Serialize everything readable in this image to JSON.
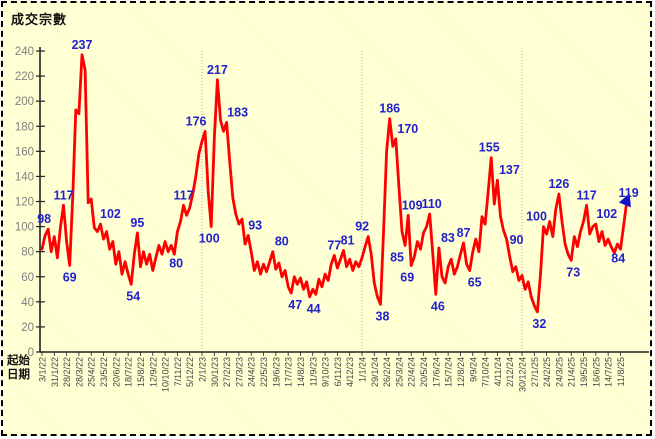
{
  "title": "成交宗數",
  "x_axis_title": {
    "line1": "起始",
    "line2": "日期"
  },
  "colors": {
    "background": "#FFFFC9",
    "frame_border": "#000000",
    "line": "#FF0000",
    "data_label": "#2222CC",
    "end_marker": "#1111CC",
    "y_tick_label": "#808080",
    "x_tick_label": "#444444",
    "axis": "#222222",
    "year_separator": "#AAAAAA"
  },
  "chart_data": {
    "type": "line",
    "title": "成交宗數",
    "xlabel": "起始日期",
    "ylabel": "",
    "ylim": [
      0,
      240
    ],
    "y_ticks": [
      0,
      20,
      40,
      60,
      80,
      100,
      120,
      140,
      160,
      180,
      200,
      220,
      240
    ],
    "grid": false,
    "legend": "none",
    "x_tick_labels": [
      "3/1/22",
      "31/1/22",
      "28/2/22",
      "28/3/22",
      "25/4/22",
      "23/5/22",
      "20/6/22",
      "18/7/22",
      "15/8/22",
      "12/9/22",
      "10/10/22",
      "7/11/22",
      "5/12/22",
      "2/1/23",
      "30/1/23",
      "27/2/23",
      "27/3/23",
      "24/4/23",
      "22/5/23",
      "19/6/23",
      "17/7/23",
      "14/8/23",
      "11/9/23",
      "9/10/23",
      "6/11/23",
      "4/12/23",
      "1/1/24",
      "29/1/24",
      "26/2/24",
      "25/3/24",
      "22/4/24",
      "20/5/24",
      "17/6/24",
      "15/7/24",
      "12/8/24",
      "9/9/24",
      "7/10/24",
      "4/11/24",
      "2/12/24",
      "30/12/24",
      "27/1/25",
      "24/2/25",
      "24/3/25",
      "21/4/25",
      "19/5/25",
      "16/6/25",
      "14/7/25",
      "11/8/25"
    ],
    "weeks_per_tick": 4,
    "year_separator_weeks": [
      52,
      104,
      156
    ],
    "values": [
      82,
      93,
      98,
      80,
      92,
      75,
      100,
      117,
      88,
      69,
      125,
      193,
      190,
      237,
      225,
      119,
      122,
      99,
      96,
      102,
      90,
      96,
      82,
      88,
      70,
      80,
      62,
      72,
      62,
      54,
      78,
      95,
      68,
      80,
      70,
      78,
      65,
      75,
      85,
      78,
      88,
      80,
      85,
      78,
      96,
      104,
      117,
      109,
      115,
      126,
      140,
      158,
      168,
      176,
      128,
      100,
      170,
      217,
      185,
      176,
      183,
      152,
      123,
      110,
      102,
      106,
      86,
      93,
      80,
      65,
      72,
      62,
      70,
      64,
      72,
      80,
      66,
      71,
      60,
      65,
      52,
      47,
      60,
      54,
      59,
      50,
      56,
      44,
      50,
      46,
      58,
      52,
      62,
      57,
      70,
      77,
      67,
      74,
      81,
      68,
      74,
      65,
      72,
      68,
      75,
      84,
      92,
      78,
      55,
      44,
      38,
      95,
      160,
      186,
      164,
      170,
      132,
      96,
      85,
      109,
      69,
      76,
      88,
      82,
      95,
      100,
      110,
      78,
      46,
      83,
      60,
      55,
      68,
      74,
      62,
      68,
      78,
      87,
      70,
      65,
      80,
      90,
      80,
      108,
      102,
      128,
      155,
      118,
      137,
      108,
      97,
      90,
      76,
      64,
      68,
      57,
      61,
      50,
      56,
      44,
      37,
      32,
      62,
      100,
      94,
      104,
      92,
      114,
      126,
      104,
      86,
      78,
      73,
      92,
      84,
      96,
      104,
      117,
      94,
      100,
      102,
      88,
      96,
      85,
      90,
      84,
      79,
      86,
      82,
      100,
      119
    ],
    "annotations": [
      {
        "week": 2,
        "value": 98,
        "side": "above",
        "dx": -4
      },
      {
        "week": 7,
        "value": 117,
        "side": "above",
        "dx": 0
      },
      {
        "week": 9,
        "value": 69,
        "side": "below",
        "dx": 0
      },
      {
        "week": 13,
        "value": 237,
        "side": "above",
        "dx": 0
      },
      {
        "week": 19,
        "value": 102,
        "side": "above",
        "dx": 10
      },
      {
        "week": 29,
        "value": 54,
        "side": "below",
        "dx": 2
      },
      {
        "week": 31,
        "value": 95,
        "side": "above",
        "dx": 0
      },
      {
        "week": 41,
        "value": 80,
        "side": "below",
        "dx": 8
      },
      {
        "week": 46,
        "value": 117,
        "side": "above",
        "dx": 0
      },
      {
        "week": 53,
        "value": 176,
        "side": "above",
        "dx": -9
      },
      {
        "week": 55,
        "value": 100,
        "side": "below",
        "dx": -2
      },
      {
        "week": 57,
        "value": 217,
        "side": "above",
        "dx": 0
      },
      {
        "week": 60,
        "value": 183,
        "side": "above",
        "dx": 11
      },
      {
        "week": 67,
        "value": 93,
        "side": "above",
        "dx": 7
      },
      {
        "week": 75,
        "value": 80,
        "side": "above",
        "dx": 9
      },
      {
        "week": 81,
        "value": 47,
        "side": "below",
        "dx": 4
      },
      {
        "week": 87,
        "value": 44,
        "side": "below",
        "dx": 4
      },
      {
        "week": 95,
        "value": 77,
        "side": "above",
        "dx": 0
      },
      {
        "week": 98,
        "value": 81,
        "side": "above",
        "dx": 4
      },
      {
        "week": 106,
        "value": 92,
        "side": "above",
        "dx": -6
      },
      {
        "week": 110,
        "value": 38,
        "side": "below",
        "dx": 2
      },
      {
        "week": 113,
        "value": 186,
        "side": "above",
        "dx": 0
      },
      {
        "week": 115,
        "value": 170,
        "side": "above",
        "dx": 12
      },
      {
        "week": 118,
        "value": 85,
        "side": "below",
        "dx": -8
      },
      {
        "week": 119,
        "value": 109,
        "side": "above",
        "dx": 4
      },
      {
        "week": 120,
        "value": 69,
        "side": "below",
        "dx": -4
      },
      {
        "week": 126,
        "value": 110,
        "side": "above",
        "dx": 2
      },
      {
        "week": 128,
        "value": 46,
        "side": "below",
        "dx": 2
      },
      {
        "week": 129,
        "value": 83,
        "side": "above",
        "dx": 9
      },
      {
        "week": 137,
        "value": 87,
        "side": "above",
        "dx": 0
      },
      {
        "week": 139,
        "value": 65,
        "side": "below",
        "dx": 5
      },
      {
        "week": 146,
        "value": 155,
        "side": "above",
        "dx": -2
      },
      {
        "week": 148,
        "value": 137,
        "side": "above",
        "dx": 12
      },
      {
        "week": 151,
        "value": 90,
        "side": "right",
        "dx": -5
      },
      {
        "week": 161,
        "value": 32,
        "side": "below",
        "dx": 2
      },
      {
        "week": 163,
        "value": 100,
        "side": "above",
        "dx": -7
      },
      {
        "week": 168,
        "value": 126,
        "side": "above",
        "dx": 0
      },
      {
        "week": 172,
        "value": 73,
        "side": "below",
        "dx": 2
      },
      {
        "week": 177,
        "value": 117,
        "side": "above",
        "dx": 0
      },
      {
        "week": 180,
        "value": 102,
        "side": "above",
        "dx": 11
      },
      {
        "week": 185,
        "value": 84,
        "side": "below",
        "dx": 7
      },
      {
        "week": 190,
        "value": 119,
        "side": "above",
        "dx": 2
      }
    ],
    "end_marker": "triangle-up"
  }
}
